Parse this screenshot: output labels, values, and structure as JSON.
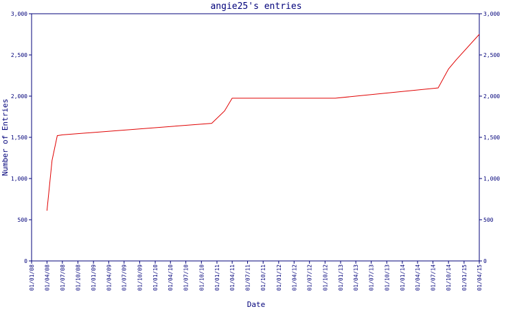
{
  "chart_data": {
    "type": "line",
    "title": "angie25's entries",
    "xlabel": "Date",
    "ylabel": "Number of Entries",
    "ylim": [
      0,
      3000
    ],
    "y_ticks": [
      0,
      500,
      1000,
      1500,
      2000,
      2500,
      3000
    ],
    "y_tick_labels": [
      "0",
      "500",
      "1,000",
      "1,500",
      "2,000",
      "2,500",
      "3,000"
    ],
    "x_range": [
      "2008-01-01",
      "2015-04-01"
    ],
    "x_tick_dates": [
      "2008-01-01",
      "2008-04-01",
      "2008-07-01",
      "2008-10-01",
      "2009-01-01",
      "2009-04-01",
      "2009-07-01",
      "2009-10-01",
      "2010-01-01",
      "2010-04-01",
      "2010-07-01",
      "2010-10-01",
      "2011-01-01",
      "2011-04-01",
      "2011-07-01",
      "2011-10-01",
      "2012-01-01",
      "2012-04-01",
      "2012-07-01",
      "2012-10-01",
      "2013-01-01",
      "2013-04-01",
      "2013-07-01",
      "2013-10-01",
      "2014-01-01",
      "2014-04-01",
      "2014-07-01",
      "2014-10-01",
      "2015-01-01",
      "2015-04-01"
    ],
    "x_tick_labels": [
      "01/01/08",
      "01/04/08",
      "01/07/08",
      "01/10/08",
      "01/01/09",
      "01/04/09",
      "01/07/09",
      "01/10/09",
      "01/01/10",
      "01/04/10",
      "01/07/10",
      "01/10/10",
      "01/01/11",
      "01/04/11",
      "01/07/11",
      "01/10/11",
      "01/01/12",
      "01/04/12",
      "01/07/12",
      "01/10/12",
      "01/01/13",
      "01/04/13",
      "01/07/13",
      "01/10/13",
      "01/01/14",
      "01/04/14",
      "01/07/14",
      "01/10/14",
      "01/01/15",
      "01/04/15"
    ],
    "grid": false,
    "series": [
      {
        "color": "#e00000",
        "x": [
          "2008-04-01",
          "2008-05-01",
          "2008-06-01",
          "2008-07-01",
          "2010-12-01",
          "2011-02-15",
          "2011-04-01",
          "2012-12-01",
          "2014-08-01",
          "2014-10-01",
          "2014-11-15",
          "2015-04-01"
        ],
        "values": [
          610,
          1220,
          1520,
          1530,
          1670,
          1820,
          1975,
          1975,
          2100,
          2330,
          2440,
          2750
        ]
      }
    ]
  }
}
